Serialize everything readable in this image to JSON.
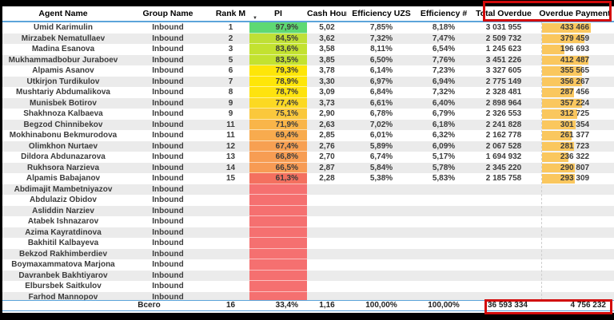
{
  "colors": {
    "header_line_blue": "#5ca4da",
    "annotation_red": "#d20b0b",
    "databar_orange": "#fac75e",
    "row_stripe_gray": "#ebebeb",
    "pi_blank_red": "#f57070"
  },
  "icons": {
    "sort_descending": "▼"
  },
  "table": {
    "columns": [
      "Agent Name",
      "Group Name",
      "Rank M",
      "PI",
      "Cash Hours",
      "Efficiency UZS",
      "Efficiency #",
      "Total Overdue",
      "Overdue Payment"
    ],
    "rows": [
      {
        "agent": "Umid Karimulin",
        "group": "Inbound",
        "rank": "1",
        "pi": "97,9%",
        "pi_color": "#5ed973",
        "cash": "5,02",
        "eff_uzs": "7,85%",
        "eff_num": "8,18%",
        "total_overdue": "3 031 955",
        "overdue_payment": "433 466"
      },
      {
        "agent": "Mirzabek Nematullaev",
        "group": "Inbound",
        "rank": "2",
        "pi": "84,5%",
        "pi_color": "#bfe036",
        "cash": "3,62",
        "eff_uzs": "7,32%",
        "eff_num": "7,47%",
        "total_overdue": "2 509 732",
        "overdue_payment": "379 459"
      },
      {
        "agent": "Madina Esanova",
        "group": "Inbound",
        "rank": "3",
        "pi": "83,6%",
        "pi_color": "#c3e230",
        "cash": "3,58",
        "eff_uzs": "8,11%",
        "eff_num": "6,54%",
        "total_overdue": "1 245 623",
        "overdue_payment": "196 693"
      },
      {
        "agent": "Mukhammadbobur Juraboev",
        "group": "Inbound",
        "rank": "5",
        "pi": "83,5%",
        "pi_color": "#c3e230",
        "cash": "3,85",
        "eff_uzs": "6,50%",
        "eff_num": "7,76%",
        "total_overdue": "3 451 226",
        "overdue_payment": "412 487"
      },
      {
        "agent": "Alpamis Asanov",
        "group": "Inbound",
        "rank": "6",
        "pi": "79,3%",
        "pi_color": "#fee608",
        "cash": "3,78",
        "eff_uzs": "6,14%",
        "eff_num": "7,23%",
        "total_overdue": "3 327 605",
        "overdue_payment": "355 565"
      },
      {
        "agent": "Utkirjon Turdikulov",
        "group": "Inbound",
        "rank": "7",
        "pi": "78,9%",
        "pi_color": "#fee608",
        "cash": "3,30",
        "eff_uzs": "6,97%",
        "eff_num": "6,94%",
        "total_overdue": "2 775 149",
        "overdue_payment": "356 267"
      },
      {
        "agent": "Mushtariy Abdumalikova",
        "group": "Inbound",
        "rank": "8",
        "pi": "78,7%",
        "pi_color": "#fee30e",
        "cash": "3,09",
        "eff_uzs": "6,84%",
        "eff_num": "7,32%",
        "total_overdue": "2 328 481",
        "overdue_payment": "287 456"
      },
      {
        "agent": "Munisbek Botirov",
        "group": "Inbound",
        "rank": "9",
        "pi": "77,4%",
        "pi_color": "#fcd922",
        "cash": "3,73",
        "eff_uzs": "6,61%",
        "eff_num": "6,40%",
        "total_overdue": "2 898 964",
        "overdue_payment": "357 224"
      },
      {
        "agent": "Shakhnoza Kalbaeva",
        "group": "Inbound",
        "rank": "9",
        "pi": "75,1%",
        "pi_color": "#fac83c",
        "cash": "2,90",
        "eff_uzs": "6,78%",
        "eff_num": "6,79%",
        "total_overdue": "2 326 553",
        "overdue_payment": "312 725"
      },
      {
        "agent": "Begzod Chinnibekov",
        "group": "Inbound",
        "rank": "11",
        "pi": "71,9%",
        "pi_color": "#f9b549",
        "cash": "2,63",
        "eff_uzs": "7,02%",
        "eff_num": "6,18%",
        "total_overdue": "2 241 828",
        "overdue_payment": "301 354"
      },
      {
        "agent": "Mokhinabonu Bekmurodova",
        "group": "Inbound",
        "rank": "11",
        "pi": "69,4%",
        "pi_color": "#f8ab4e",
        "cash": "2,85",
        "eff_uzs": "6,01%",
        "eff_num": "6,32%",
        "total_overdue": "2 162 778",
        "overdue_payment": "261 377"
      },
      {
        "agent": "Olimkhon Nurtaev",
        "group": "Inbound",
        "rank": "12",
        "pi": "67,4%",
        "pi_color": "#f7a052",
        "cash": "2,76",
        "eff_uzs": "5,89%",
        "eff_num": "6,09%",
        "total_overdue": "2 067 528",
        "overdue_payment": "281 723"
      },
      {
        "agent": "Dildora Abdunazarova",
        "group": "Inbound",
        "rank": "13",
        "pi": "66,8%",
        "pi_color": "#f79d53",
        "cash": "2,70",
        "eff_uzs": "6,74%",
        "eff_num": "5,17%",
        "total_overdue": "1 694 932",
        "overdue_payment": "236 322"
      },
      {
        "agent": "Rukhsora Narzieva",
        "group": "Inbound",
        "rank": "14",
        "pi": "66,5%",
        "pi_color": "#f79b54",
        "cash": "2,87",
        "eff_uzs": "5,84%",
        "eff_num": "5,78%",
        "total_overdue": "2 345 220",
        "overdue_payment": "290 807"
      },
      {
        "agent": "Alpamis Babajanov",
        "group": "Inbound",
        "rank": "15",
        "pi": "61,3%",
        "pi_color": "#f4705f",
        "cash": "2,28",
        "eff_uzs": "5,38%",
        "eff_num": "5,83%",
        "total_overdue": "2 185 758",
        "overdue_payment": "293 309"
      },
      {
        "agent": "Abdimajit Mambetniyazov",
        "group": "Inbound",
        "rank": "",
        "pi": "",
        "pi_color": "#f57070",
        "cash": "",
        "eff_uzs": "",
        "eff_num": "",
        "total_overdue": "",
        "overdue_payment": ""
      },
      {
        "agent": "Abdulaziz Obidov",
        "group": "Inbound",
        "rank": "",
        "pi": "",
        "pi_color": "#f57070",
        "cash": "",
        "eff_uzs": "",
        "eff_num": "",
        "total_overdue": "",
        "overdue_payment": ""
      },
      {
        "agent": "Asliddin Narziev",
        "group": "Inbound",
        "rank": "",
        "pi": "",
        "pi_color": "#f57070",
        "cash": "",
        "eff_uzs": "",
        "eff_num": "",
        "total_overdue": "",
        "overdue_payment": ""
      },
      {
        "agent": "Atabek Ishnazarov",
        "group": "Inbound",
        "rank": "",
        "pi": "",
        "pi_color": "#f57070",
        "cash": "",
        "eff_uzs": "",
        "eff_num": "",
        "total_overdue": "",
        "overdue_payment": ""
      },
      {
        "agent": "Azima Kayratdinova",
        "group": "Inbound",
        "rank": "",
        "pi": "",
        "pi_color": "#f57070",
        "cash": "",
        "eff_uzs": "",
        "eff_num": "",
        "total_overdue": "",
        "overdue_payment": ""
      },
      {
        "agent": "Bakhitil Kalbayeva",
        "group": "Inbound",
        "rank": "",
        "pi": "",
        "pi_color": "#f57070",
        "cash": "",
        "eff_uzs": "",
        "eff_num": "",
        "total_overdue": "",
        "overdue_payment": ""
      },
      {
        "agent": "Bekzod Rakhimberdiev",
        "group": "Inbound",
        "rank": "",
        "pi": "",
        "pi_color": "#f57070",
        "cash": "",
        "eff_uzs": "",
        "eff_num": "",
        "total_overdue": "",
        "overdue_payment": ""
      },
      {
        "agent": "Boymaxammatova Marjona",
        "group": "Inbound",
        "rank": "",
        "pi": "",
        "pi_color": "#f57070",
        "cash": "",
        "eff_uzs": "",
        "eff_num": "",
        "total_overdue": "",
        "overdue_payment": ""
      },
      {
        "agent": "Davranbek Bakhtiyarov",
        "group": "Inbound",
        "rank": "",
        "pi": "",
        "pi_color": "#f57070",
        "cash": "",
        "eff_uzs": "",
        "eff_num": "",
        "total_overdue": "",
        "overdue_payment": ""
      },
      {
        "agent": "Elbursbek Saitkulov",
        "group": "Inbound",
        "rank": "",
        "pi": "",
        "pi_color": "#f57070",
        "cash": "",
        "eff_uzs": "",
        "eff_num": "",
        "total_overdue": "",
        "overdue_payment": ""
      },
      {
        "agent": "Farhod Mannopov",
        "group": "Inbound",
        "rank": "",
        "pi": "",
        "pi_color": "#f57070",
        "cash": "",
        "eff_uzs": "",
        "eff_num": "",
        "total_overdue": "",
        "overdue_payment": ""
      }
    ],
    "total": {
      "label": "Всего",
      "rank": "16",
      "pi": "33,4%",
      "cash": "1,16",
      "eff_uzs": "100,00%",
      "eff_num": "100,00%",
      "total_overdue": "36 593 334",
      "overdue_payment": "4 756 232"
    }
  }
}
